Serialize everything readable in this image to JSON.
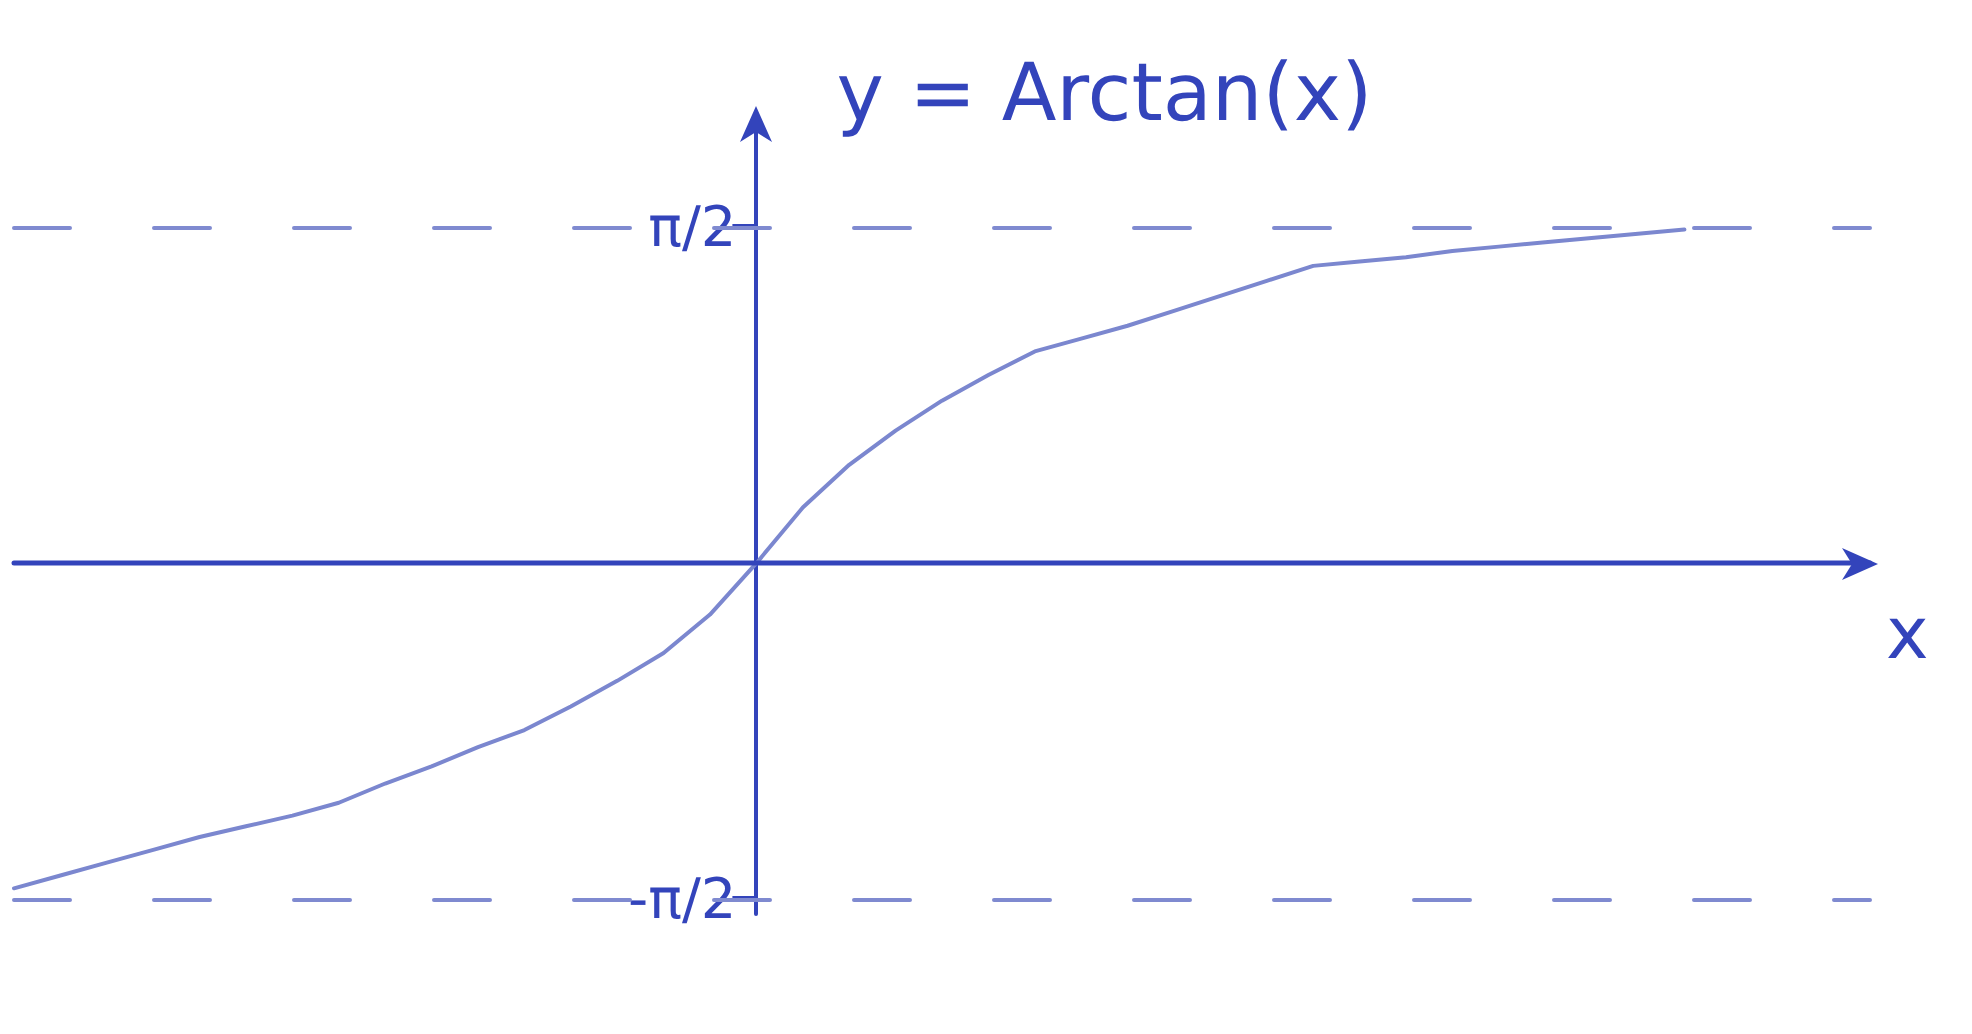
{
  "chart_data": {
    "type": "line",
    "ylabel": "y = Arctan(x)",
    "xlabel": "x",
    "categories": [
      null,
      null,
      null,
      null,
      null,
      null,
      null,
      null,
      null,
      null,
      null,
      null,
      null,
      null,
      null,
      null,
      null,
      null,
      null,
      null,
      null,
      null,
      null,
      null,
      null,
      null,
      null,
      null,
      null,
      null,
      null,
      null,
      null,
      null,
      null,
      null,
      null,
      null,
      null,
      null,
      null
    ],
    "values": [
      -1.52,
      -1.46,
      -1.4,
      -1.34,
      -1.28,
      -1.23,
      -1.18,
      -1.12,
      -1.03,
      -0.95,
      -0.86,
      -0.78,
      -0.67,
      -0.55,
      -0.42,
      -0.24,
      0,
      0.26,
      0.46,
      0.62,
      0.76,
      0.88,
      0.99,
      1.05,
      1.11,
      1.18,
      1.25,
      1.32,
      1.39,
      1.41,
      1.43,
      1.46,
      1.48,
      1.5,
      1.52,
      1.54,
      1.56,
      null,
      null,
      null,
      null
    ],
    "color": "#7b87cf",
    "ylim": [
      -1.64,
      2.1
    ],
    "yticks": [
      {
        "value": 1.5708,
        "label": "π/2"
      },
      {
        "value": -1.5708,
        "label": "-π/2"
      }
    ],
    "ref_lines": [
      {
        "axis": "y",
        "value": 1.5708,
        "line_style": "dashed",
        "color": "#7f8ad0"
      },
      {
        "axis": "y",
        "value": -1.5708,
        "line_style": "dashed",
        "color": "#7f8ad0"
      },
      {
        "axis": "y",
        "value": 0,
        "line_style": "solid",
        "color": "#3344bb"
      }
    ],
    "tick_labels": "y",
    "marker": "none",
    "line_style": "solid"
  }
}
